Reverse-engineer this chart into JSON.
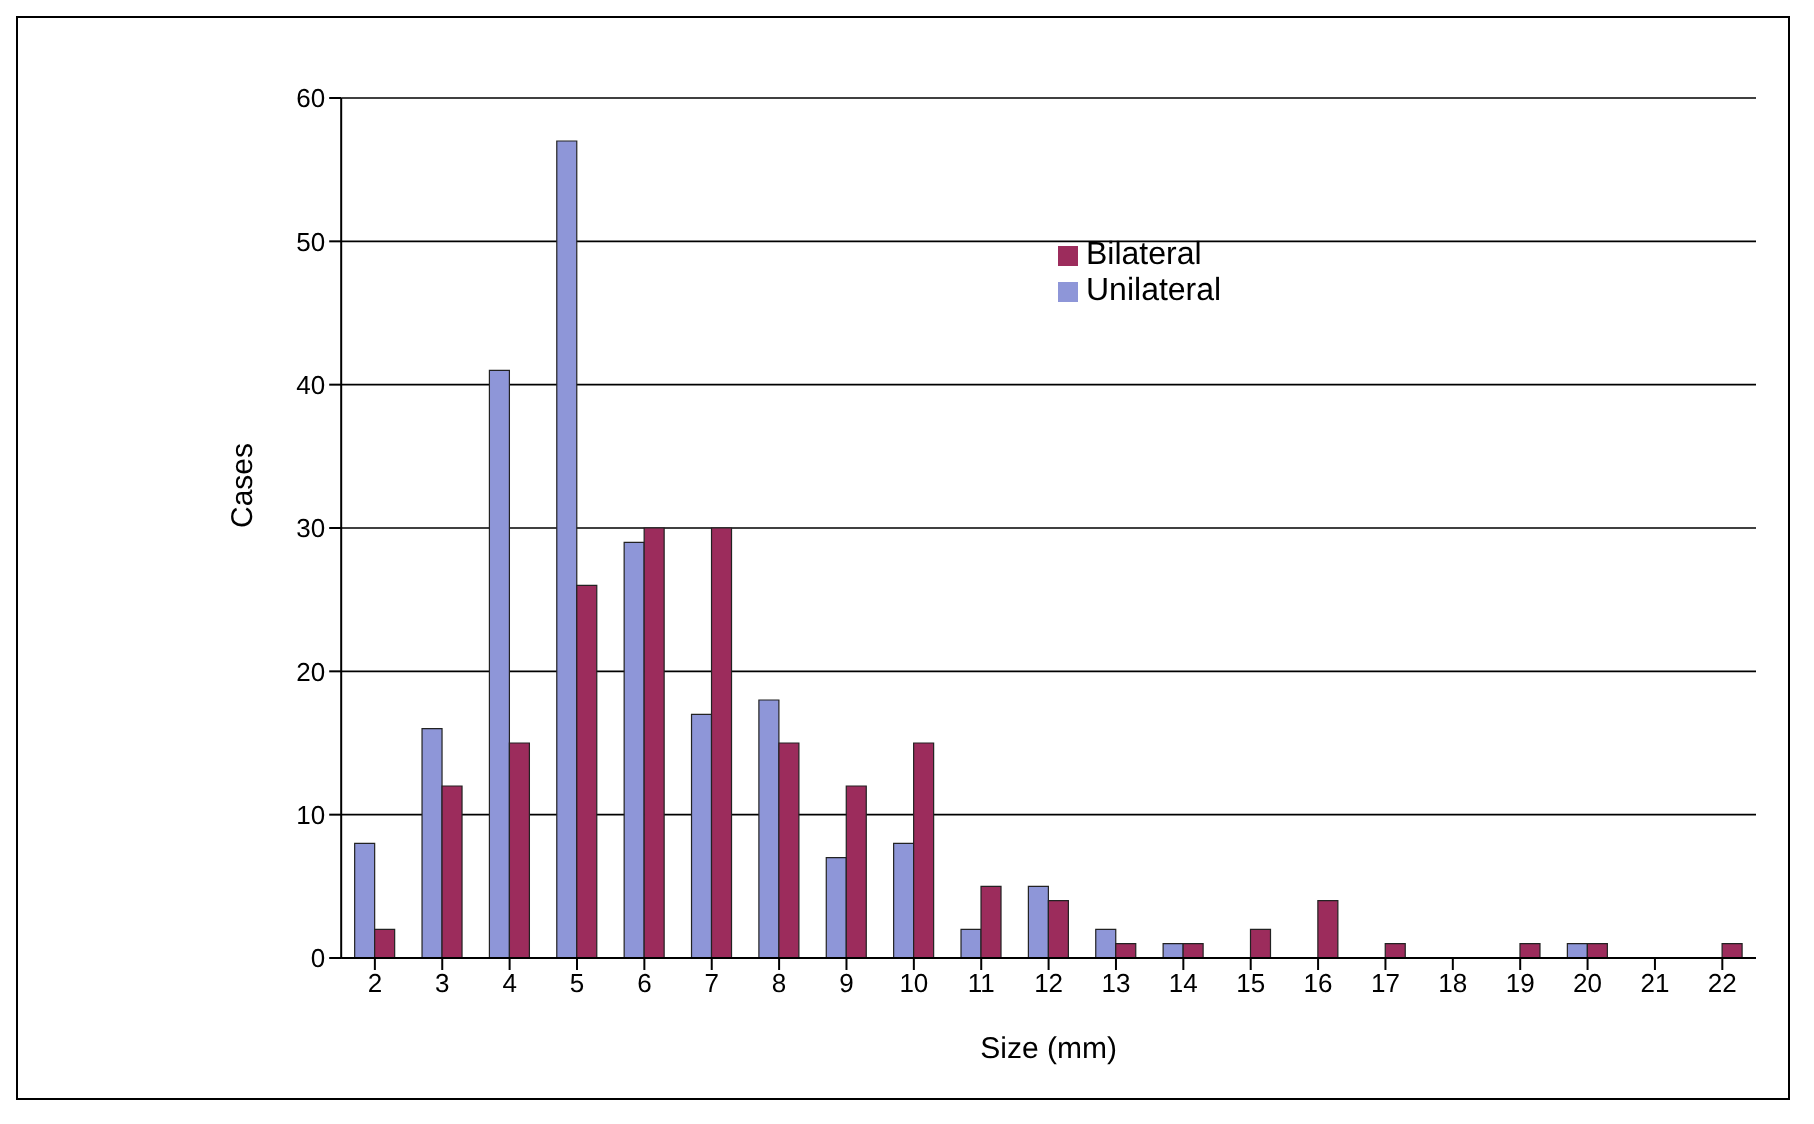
{
  "chart_data": {
    "type": "bar",
    "xlabel": "Size (mm)",
    "ylabel": "Cases",
    "categories": [
      "2",
      "3",
      "4",
      "5",
      "6",
      "7",
      "8",
      "9",
      "10",
      "11",
      "12",
      "13",
      "14",
      "15",
      "16",
      "17",
      "18",
      "19",
      "20",
      "21",
      "22"
    ],
    "series": [
      {
        "name": "Unilateral",
        "color": "#8e96d8",
        "values": [
          8,
          16,
          41,
          57,
          29,
          17,
          18,
          7,
          8,
          2,
          5,
          2,
          1,
          0,
          0,
          0,
          0,
          0,
          1,
          0,
          0
        ]
      },
      {
        "name": "Bilateral",
        "color": "#9c2c5c",
        "values": [
          2,
          12,
          15,
          26,
          30,
          30,
          15,
          12,
          15,
          5,
          4,
          1,
          1,
          2,
          4,
          1,
          0,
          1,
          1,
          0,
          1
        ]
      }
    ],
    "ylim": [
      0,
      60
    ],
    "yticks": [
      0,
      10,
      20,
      30,
      40,
      50,
      60
    ],
    "grid": "y",
    "legend": "top right"
  }
}
